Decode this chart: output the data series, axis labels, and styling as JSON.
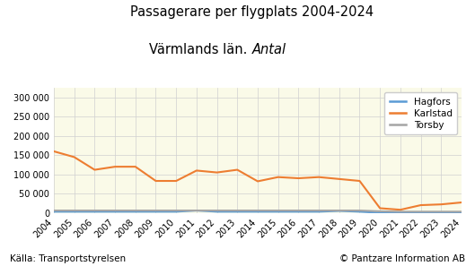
{
  "title_line1": "Passagerare per flygplats 2004-2024",
  "title_line2_normal": "Värmlands län. ",
  "title_line2_italic": "Antal",
  "years": [
    2004,
    2005,
    2006,
    2007,
    2008,
    2009,
    2010,
    2011,
    2012,
    2013,
    2014,
    2015,
    2016,
    2017,
    2018,
    2019,
    2020,
    2021,
    2022,
    2023,
    2024
  ],
  "hagfors": [
    3000,
    3000,
    3000,
    3000,
    3000,
    3000,
    3000,
    6000,
    3000,
    3000,
    3000,
    3000,
    3000,
    3000,
    5000,
    3000,
    0,
    0,
    0,
    0,
    0
  ],
  "karlstad": [
    160000,
    145000,
    112000,
    120000,
    120000,
    83000,
    83000,
    110000,
    105000,
    112000,
    82000,
    93000,
    90000,
    93000,
    88000,
    83000,
    12000,
    8000,
    20000,
    22000,
    27000
  ],
  "torsby": [
    6000,
    6000,
    6000,
    6000,
    6000,
    6000,
    6000,
    6000,
    6000,
    6000,
    6000,
    6000,
    6000,
    6000,
    6000,
    6000,
    4000,
    3000,
    3000,
    3000,
    3000
  ],
  "hagfors_color": "#5b9bd5",
  "karlstad_color": "#ed7d31",
  "torsby_color": "#a5a5a5",
  "bg_color": "#fafae8",
  "grid_color": "#d0d0d0",
  "ylim": [
    0,
    325000
  ],
  "yticks": [
    0,
    50000,
    100000,
    150000,
    200000,
    250000,
    300000
  ],
  "footer_left": "Källa: Transportstyrelsen",
  "footer_right": "© Pantzare Information AB",
  "title_fontsize": 10.5,
  "tick_fontsize": 7,
  "footer_fontsize": 7.5
}
